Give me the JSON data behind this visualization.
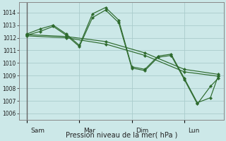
{
  "background_color": "#cce8e8",
  "grid_color": "#aacccc",
  "line_color": "#2d6a2d",
  "marker_color": "#2d6a2d",
  "xlabel": "Pression niveau de la mer( hPa )",
  "ylim": [
    1005.5,
    1014.8
  ],
  "yticks": [
    1006,
    1007,
    1008,
    1009,
    1010,
    1011,
    1012,
    1013,
    1014
  ],
  "xtick_labels": [
    "Sam",
    "Mar",
    "Dim",
    "Lun"
  ],
  "xtick_positions": [
    0.0,
    2.0,
    4.0,
    6.0
  ],
  "xlim": [
    -0.3,
    7.5
  ],
  "lines": [
    {
      "x": [
        0,
        0.5,
        1.0,
        1.5,
        2.0,
        2.5,
        3.0,
        3.5,
        4.0,
        4.5,
        5.0,
        5.5,
        6.0,
        6.5,
        7.0,
        7.3
      ],
      "y": [
        1012.3,
        1012.7,
        1013.0,
        1012.3,
        1011.4,
        1013.9,
        1014.4,
        1013.4,
        1009.7,
        1009.5,
        1010.55,
        1010.7,
        1008.8,
        1006.85,
        1007.25,
        1009.0
      ]
    },
    {
      "x": [
        0,
        0.5,
        1.0,
        1.5,
        2.0,
        2.5,
        3.0,
        3.5,
        4.0,
        4.5,
        5.0,
        5.5,
        6.0,
        6.5,
        7.0,
        7.3
      ],
      "y": [
        1012.2,
        1012.5,
        1012.9,
        1012.2,
        1011.3,
        1013.6,
        1014.2,
        1013.2,
        1009.6,
        1009.4,
        1010.45,
        1010.6,
        1008.7,
        1006.75,
        1008.15,
        1008.8
      ]
    },
    {
      "x": [
        0,
        1.5,
        3.0,
        4.5,
        6.0,
        7.3
      ],
      "y": [
        1012.25,
        1012.1,
        1011.7,
        1010.8,
        1009.5,
        1009.1
      ]
    },
    {
      "x": [
        0,
        1.5,
        3.0,
        4.5,
        6.0,
        7.3
      ],
      "y": [
        1012.15,
        1012.0,
        1011.5,
        1010.6,
        1009.3,
        1008.95
      ]
    }
  ]
}
